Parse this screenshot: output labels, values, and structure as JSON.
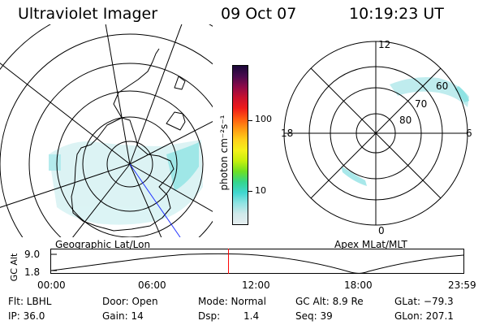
{
  "header": {
    "instrument": "Ultraviolet Imager",
    "date": "09 Oct 07",
    "time": "10:19:23 UT"
  },
  "left_map": {
    "label": "Geographic Lat/Lon"
  },
  "right_map": {
    "label": "Apex MLat/MLT",
    "mlt_labels": {
      "top": "12",
      "left": "18",
      "right": "6",
      "bottom": "0"
    },
    "lat_labels": [
      "60",
      "70",
      "80"
    ]
  },
  "colorbar": {
    "unit_label": "photon cm⁻²s⁻¹",
    "ticks": [
      "100",
      "10"
    ],
    "scale": "log",
    "colors": [
      "#e6eef0",
      "#cfe9ea",
      "#8fe3e3",
      "#3fd6cf",
      "#33d68c",
      "#6ee024",
      "#c6f00d",
      "#f4f11a",
      "#ffd01a",
      "#ff9a12",
      "#ff5a10",
      "#ee1a1a",
      "#c8102e",
      "#8e0a48",
      "#4a0a4e",
      "#1a0838"
    ]
  },
  "altitude_plot": {
    "ylabel": "GC Alt",
    "yticks": [
      "9.0",
      "1.8"
    ],
    "xticks": [
      "00:00",
      "06:00",
      "12:00",
      "18:00",
      "23:59"
    ],
    "current_time_marker": "10:19",
    "marker_color": "#ff0000"
  },
  "info": {
    "row1": {
      "flt": "Flt: LBHL",
      "door": "Door: Open",
      "mode": "Mode: Normal",
      "gc_alt": "GC Alt: 8.9 Re",
      "glat": "GLat: −79.3"
    },
    "row2": {
      "ip": "IP: 36.0",
      "gain": "Gain: 14",
      "dsp_label": "Dsp:",
      "dsp_value": "1.4",
      "seq": "Seq: 39",
      "glon": "GLon: 207.1"
    }
  }
}
